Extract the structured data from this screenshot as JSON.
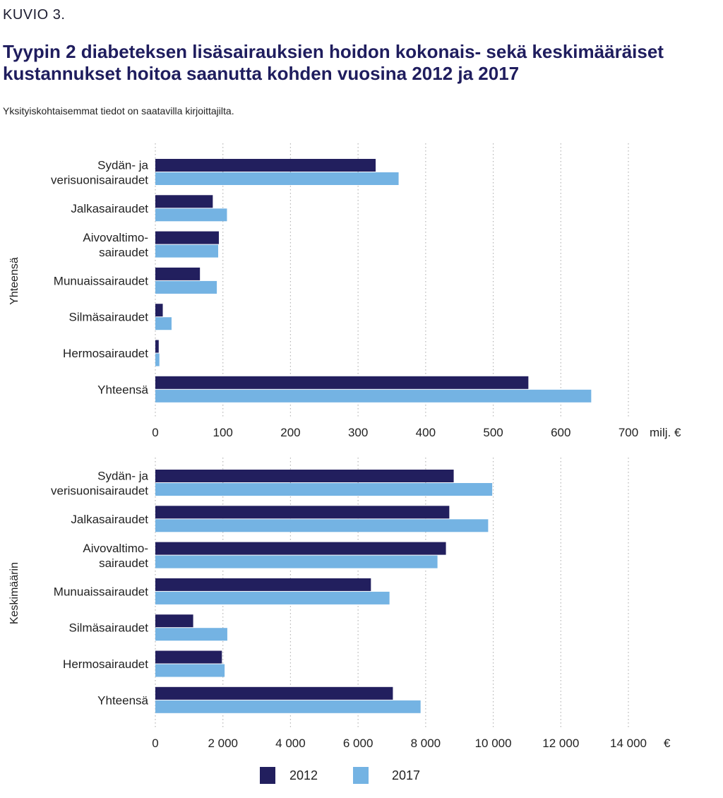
{
  "figure_label": "KUVIO 3.",
  "title": "Tyypin 2 diabeteksen lisäsairauksien hoidon kokonais- sekä keskimääräiset kustannukset hoitoa saanutta kohden vuosina 2012 ja 2017",
  "subtitle": "Yksityiskohtaisemmat tiedot on saatavilla kirjoittajilta.",
  "colors": {
    "2012": "#221f5e",
    "2017": "#74b3e3",
    "grid": "#b5b5b5"
  },
  "chart_data": [
    {
      "type": "bar",
      "orientation": "horizontal",
      "panel_label": "Yhteensä",
      "unit": "milj. €",
      "categories": [
        "Sydän- ja verisuonisairaudet",
        "Jalkasairaudet",
        "Aivovaltimo-sairaudet",
        "Munuaissairaudet",
        "Silmäsairaudet",
        "Hermosairaudet",
        "Yhteensä"
      ],
      "category_lines": [
        [
          "Sydän- ja",
          "verisuonisairaudet"
        ],
        [
          "Jalkasairaudet"
        ],
        [
          "Aivovaltimo-",
          "sairaudet"
        ],
        [
          "Munuaissairaudet"
        ],
        [
          "Silmäsairaudet"
        ],
        [
          "Hermosairaudet"
        ],
        [
          "Yhteensä"
        ]
      ],
      "series": [
        {
          "name": "2012",
          "values": [
            326,
            85,
            94,
            66,
            11,
            5,
            552
          ]
        },
        {
          "name": "2017",
          "values": [
            360,
            106,
            93,
            91,
            24,
            6,
            645
          ]
        }
      ],
      "xlim": [
        0,
        700
      ],
      "ticks": [
        0,
        100,
        200,
        300,
        400,
        500,
        600,
        700
      ],
      "tick_labels": [
        "0",
        "100",
        "200",
        "300",
        "400",
        "500",
        "600",
        "700"
      ],
      "grid": true
    },
    {
      "type": "bar",
      "orientation": "horizontal",
      "panel_label": "Keskimäärin",
      "unit": "€",
      "categories": [
        "Sydän- ja verisuonisairaudet",
        "Jalkasairaudet",
        "Aivovaltimo-sairaudet",
        "Munuaissairaudet",
        "Silmäsairaudet",
        "Hermosairaudet",
        "Yhteensä"
      ],
      "category_lines": [
        [
          "Sydän- ja",
          "verisuonisairaudet"
        ],
        [
          "Jalkasairaudet"
        ],
        [
          "Aivovaltimo-",
          "sairaudet"
        ],
        [
          "Munuaissairaudet"
        ],
        [
          "Silmäsairaudet"
        ],
        [
          "Hermosairaudet"
        ],
        [
          "Yhteensä"
        ]
      ],
      "series": [
        {
          "name": "2012",
          "values": [
            8830,
            8700,
            8600,
            6380,
            1120,
            1970,
            7030
          ]
        },
        {
          "name": "2017",
          "values": [
            9970,
            9850,
            8350,
            6930,
            2130,
            2050,
            7850
          ]
        }
      ],
      "xlim": [
        0,
        14000
      ],
      "ticks": [
        0,
        2000,
        4000,
        6000,
        8000,
        10000,
        12000,
        14000
      ],
      "tick_labels": [
        "0",
        "2 000",
        "4 000",
        "6 000",
        "8 000",
        "10 000",
        "12 000",
        "14 000"
      ],
      "grid": true
    }
  ],
  "legend": {
    "placement": "bottom",
    "items": [
      "2012",
      "2017"
    ]
  }
}
